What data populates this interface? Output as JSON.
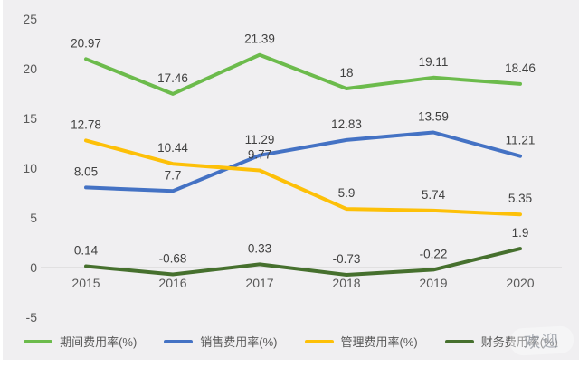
{
  "chart_data": {
    "type": "line",
    "title": "",
    "xlabel": "",
    "ylabel": "",
    "categories": [
      "2015",
      "2016",
      "2017",
      "2018",
      "2019",
      "2020"
    ],
    "series": [
      {
        "name": "期间费用率(%)",
        "color": "#6cbb4c",
        "values": [
          20.97,
          17.46,
          21.39,
          18,
          19.11,
          18.46
        ]
      },
      {
        "name": "销售费用率(%)",
        "color": "#4472c4",
        "values": [
          8.05,
          7.7,
          11.29,
          12.83,
          13.59,
          11.21
        ]
      },
      {
        "name": "管理费用率(%)",
        "color": "#fdc008",
        "values": [
          12.78,
          10.44,
          9.77,
          5.9,
          5.74,
          5.35
        ]
      },
      {
        "name": "财务费用率(%)",
        "color": "#46702e",
        "values": [
          0.14,
          -0.68,
          0.33,
          -0.73,
          -0.22,
          1.9
        ]
      }
    ],
    "y_ticks": [
      25,
      20,
      15,
      10,
      5,
      0,
      -5
    ],
    "ylim": [
      -5,
      25
    ],
    "grid": "zero-line-only",
    "legend_position": "bottom",
    "data_labels": true
  },
  "watermark": {
    "text": "欢迎"
  },
  "colors": {
    "background": "#f0eff1",
    "axis_text": "#595959",
    "data_label_text": "#404040",
    "zero_line": "#d8d8d8"
  }
}
